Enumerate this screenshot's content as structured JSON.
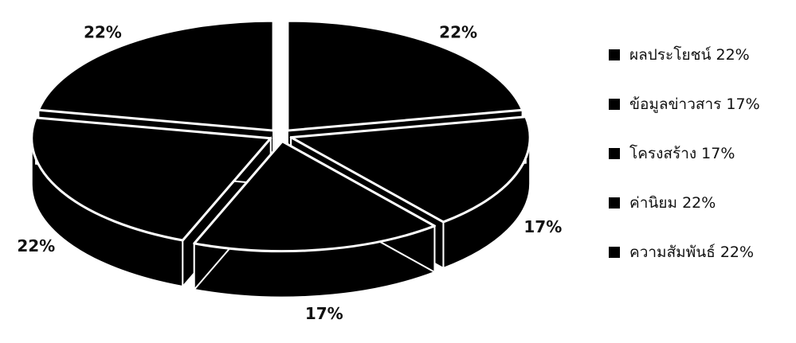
{
  "chart_data": {
    "type": "pie",
    "style": "3d exploded",
    "categories": [
      "ผลประโยชน์",
      "ข้อมูลข่าวสาร",
      "โครงสร้าง",
      "ค่านิยม",
      "ความสัมพันธ์"
    ],
    "values": [
      22,
      17,
      17,
      22,
      22
    ],
    "data_labels": [
      "22%",
      "17%",
      "17%",
      "22%",
      "22%"
    ],
    "legend_entries": [
      "ผลประโยชน์  22%",
      "ข้อมูลข่าวสาร 17%",
      "โครงสร้าง 17%",
      "ค่านิยม 22%",
      "ความสัมพันธ์ 22%"
    ],
    "legend_position": "right",
    "slice_color": "#000000",
    "edge_color": "#ffffff"
  }
}
